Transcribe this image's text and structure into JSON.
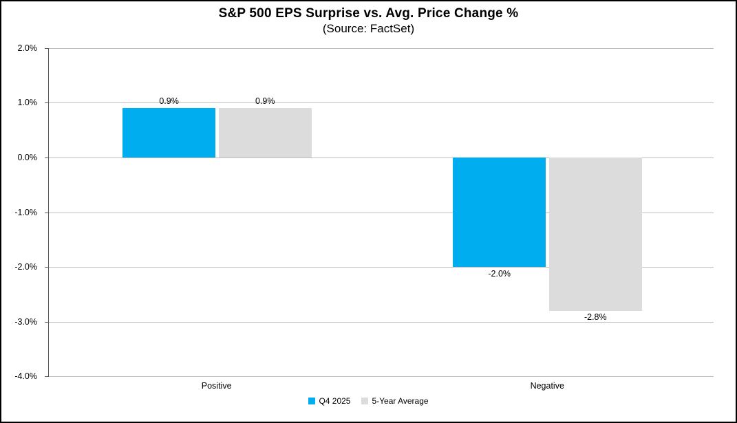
{
  "title": "S&P 500 EPS Surprise vs. Avg. Price Change %",
  "subtitle": "(Source: FactSet)",
  "chart_data": {
    "type": "bar",
    "categories": [
      "Positive",
      "Negative"
    ],
    "series": [
      {
        "name": "Q4 2025",
        "color": "#00AEEF",
        "values": [
          0.9,
          -2.0
        ],
        "labels": [
          "0.9%",
          "-2.0%"
        ]
      },
      {
        "name": "5-Year Average",
        "color": "#DCDCDC",
        "values": [
          0.9,
          -2.8
        ],
        "labels": [
          "0.9%",
          "-2.8%"
        ]
      }
    ],
    "ylim": [
      -4,
      2
    ],
    "yticks": [
      {
        "value": 2,
        "label": "2.0%"
      },
      {
        "value": 1,
        "label": "1.0%"
      },
      {
        "value": 0,
        "label": "0.0%"
      },
      {
        "value": -1,
        "label": "-1.0%"
      },
      {
        "value": -2,
        "label": "-2.0%"
      },
      {
        "value": -3,
        "label": "-3.0%"
      },
      {
        "value": -4,
        "label": "-4.0%"
      }
    ],
    "grid": true,
    "legend_position": "bottom"
  }
}
